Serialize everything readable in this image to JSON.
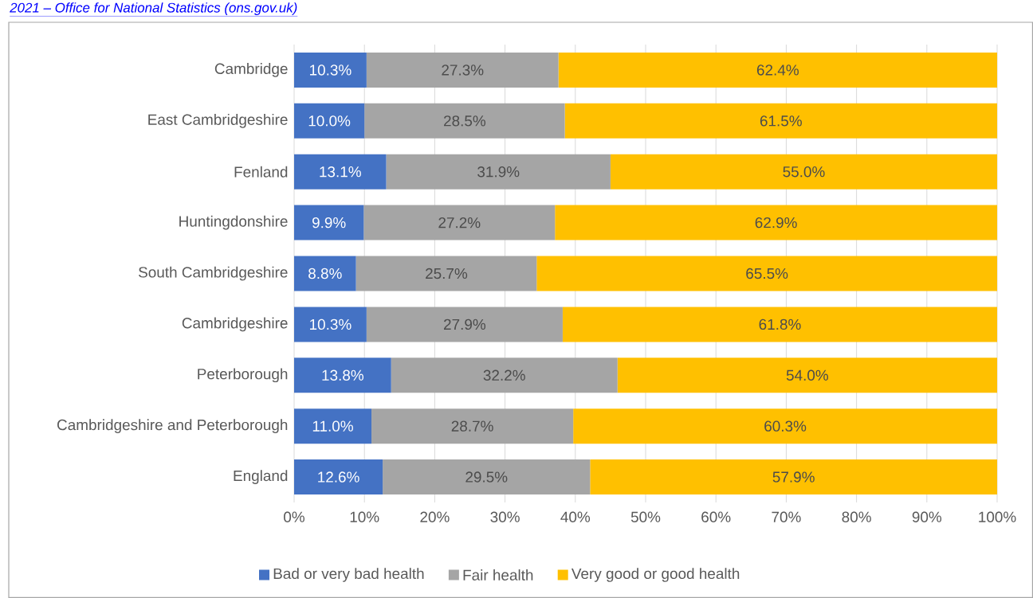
{
  "chart_data": {
    "type": "bar",
    "orientation": "horizontal",
    "stacked": true,
    "categories": [
      "Cambridge",
      "East Cambridgeshire",
      "Fenland",
      "Huntingdonshire",
      "South Cambridgeshire",
      "Cambridgeshire",
      "Peterborough",
      "Cambridgeshire and Peterborough",
      "England"
    ],
    "series": [
      {
        "name": "Bad or very bad health",
        "color": "#4472c4",
        "values": [
          10.3,
          10.0,
          13.1,
          9.9,
          8.8,
          10.3,
          13.8,
          11.0,
          12.6
        ],
        "value_labels": [
          "10.3%",
          "10.0%",
          "13.1%",
          "9.9%",
          "8.8%",
          "10.3%",
          "13.8%",
          "11.0%",
          "12.6%"
        ]
      },
      {
        "name": "Fair health",
        "color": "#a5a5a5",
        "values": [
          27.3,
          28.5,
          31.9,
          27.2,
          25.7,
          27.9,
          32.2,
          28.7,
          29.5
        ],
        "value_labels": [
          "27.3%",
          "28.5%",
          "31.9%",
          "27.2%",
          "25.7%",
          "27.9%",
          "32.2%",
          "28.7%",
          "29.5%"
        ]
      },
      {
        "name": "Very good or good health",
        "color": "#ffc000",
        "values": [
          62.4,
          61.5,
          55.0,
          62.9,
          65.5,
          61.8,
          54.0,
          60.3,
          57.9
        ],
        "value_labels": [
          "62.4%",
          "61.5%",
          "55.0%",
          "62.9%",
          "65.5%",
          "61.8%",
          "54.0%",
          "60.3%",
          "57.9%"
        ]
      }
    ],
    "xlim": [
      0,
      100
    ],
    "xticks": [
      {
        "value": 0,
        "label": "0%"
      },
      {
        "value": 10,
        "label": "10%"
      },
      {
        "value": 20,
        "label": "20%"
      },
      {
        "value": 30,
        "label": "30%"
      },
      {
        "value": 40,
        "label": "40%"
      },
      {
        "value": 50,
        "label": "50%"
      },
      {
        "value": 60,
        "label": "60%"
      },
      {
        "value": 70,
        "label": "70%"
      },
      {
        "value": 80,
        "label": "80%"
      },
      {
        "value": 90,
        "label": "90%"
      },
      {
        "value": 100,
        "label": "100%"
      }
    ],
    "grid": "x",
    "legend": "bottom",
    "annotations": [
      "2021 – Office for National Statistics (ons.gov.uk)"
    ]
  }
}
